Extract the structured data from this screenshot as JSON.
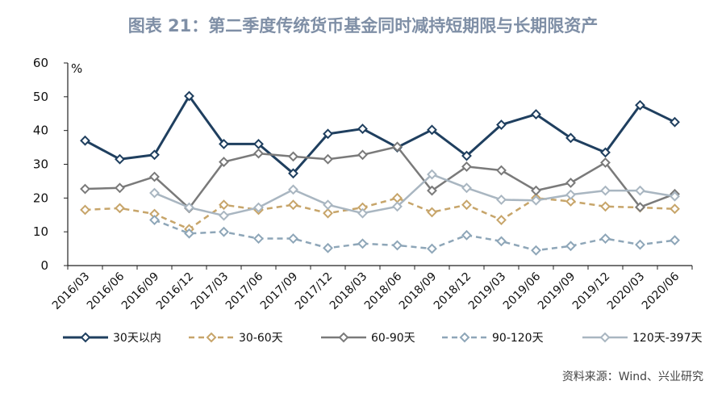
{
  "title": "图表 21：第二季度传统货币基金同时减持短期限与长期限资产",
  "source": "资料来源：Wind、兴业研究",
  "chart_data": {
    "type": "line",
    "unit_label": "%",
    "ylim": [
      0,
      60
    ],
    "yticks": [
      0,
      10,
      20,
      30,
      40,
      50,
      60
    ],
    "grid": false,
    "legend_position": "bottom",
    "categories": [
      "2016/03",
      "2016/06",
      "2016/09",
      "2016/12",
      "2017/03",
      "2017/06",
      "2017/09",
      "2017/12",
      "2018/03",
      "2018/06",
      "2018/09",
      "2018/12",
      "2019/03",
      "2019/06",
      "2019/09",
      "2019/12",
      "2020/03",
      "2020/06"
    ],
    "series": [
      {
        "name": "30天以内",
        "color": "#1f3f5f",
        "dash": "solid",
        "width": 3,
        "values": [
          37,
          31.5,
          32.8,
          50.2,
          36,
          36,
          27.3,
          39,
          40.5,
          35,
          40.2,
          32.5,
          41.7,
          44.8,
          37.8,
          33.5,
          47.5,
          42.5
        ]
      },
      {
        "name": "30-60天",
        "color": "#c7a56a",
        "dash": "dashed",
        "width": 2.5,
        "values": [
          16.5,
          17,
          15.3,
          10.8,
          18,
          16.5,
          18,
          15.5,
          17.2,
          20,
          15.8,
          18,
          13.5,
          20,
          19,
          17.5,
          17.2,
          16.8
        ]
      },
      {
        "name": "60-90天",
        "color": "#7a7a7a",
        "dash": "solid",
        "width": 2.5,
        "values": [
          22.7,
          23,
          26.3,
          17,
          30.7,
          33.2,
          32.3,
          31.5,
          32.8,
          35.2,
          22.2,
          29.3,
          28.2,
          22.2,
          24.5,
          30.5,
          17.3,
          21.2
        ]
      },
      {
        "name": "90-120天",
        "color": "#8ea6b8",
        "dash": "dashed",
        "width": 2.5,
        "values": [
          null,
          null,
          13.5,
          9.5,
          10,
          8,
          8,
          5.2,
          6.5,
          6,
          5,
          9,
          7.2,
          4.5,
          5.8,
          8,
          6.2,
          7.5
        ]
      },
      {
        "name": "120天-397天",
        "color": "#a9b6c1",
        "dash": "solid",
        "width": 2.5,
        "values": [
          null,
          null,
          21.5,
          17.2,
          14.8,
          17.2,
          22.5,
          18,
          15.5,
          17.5,
          27,
          23,
          19.5,
          19.3,
          21,
          22.2,
          22.2,
          20.5
        ]
      }
    ]
  }
}
